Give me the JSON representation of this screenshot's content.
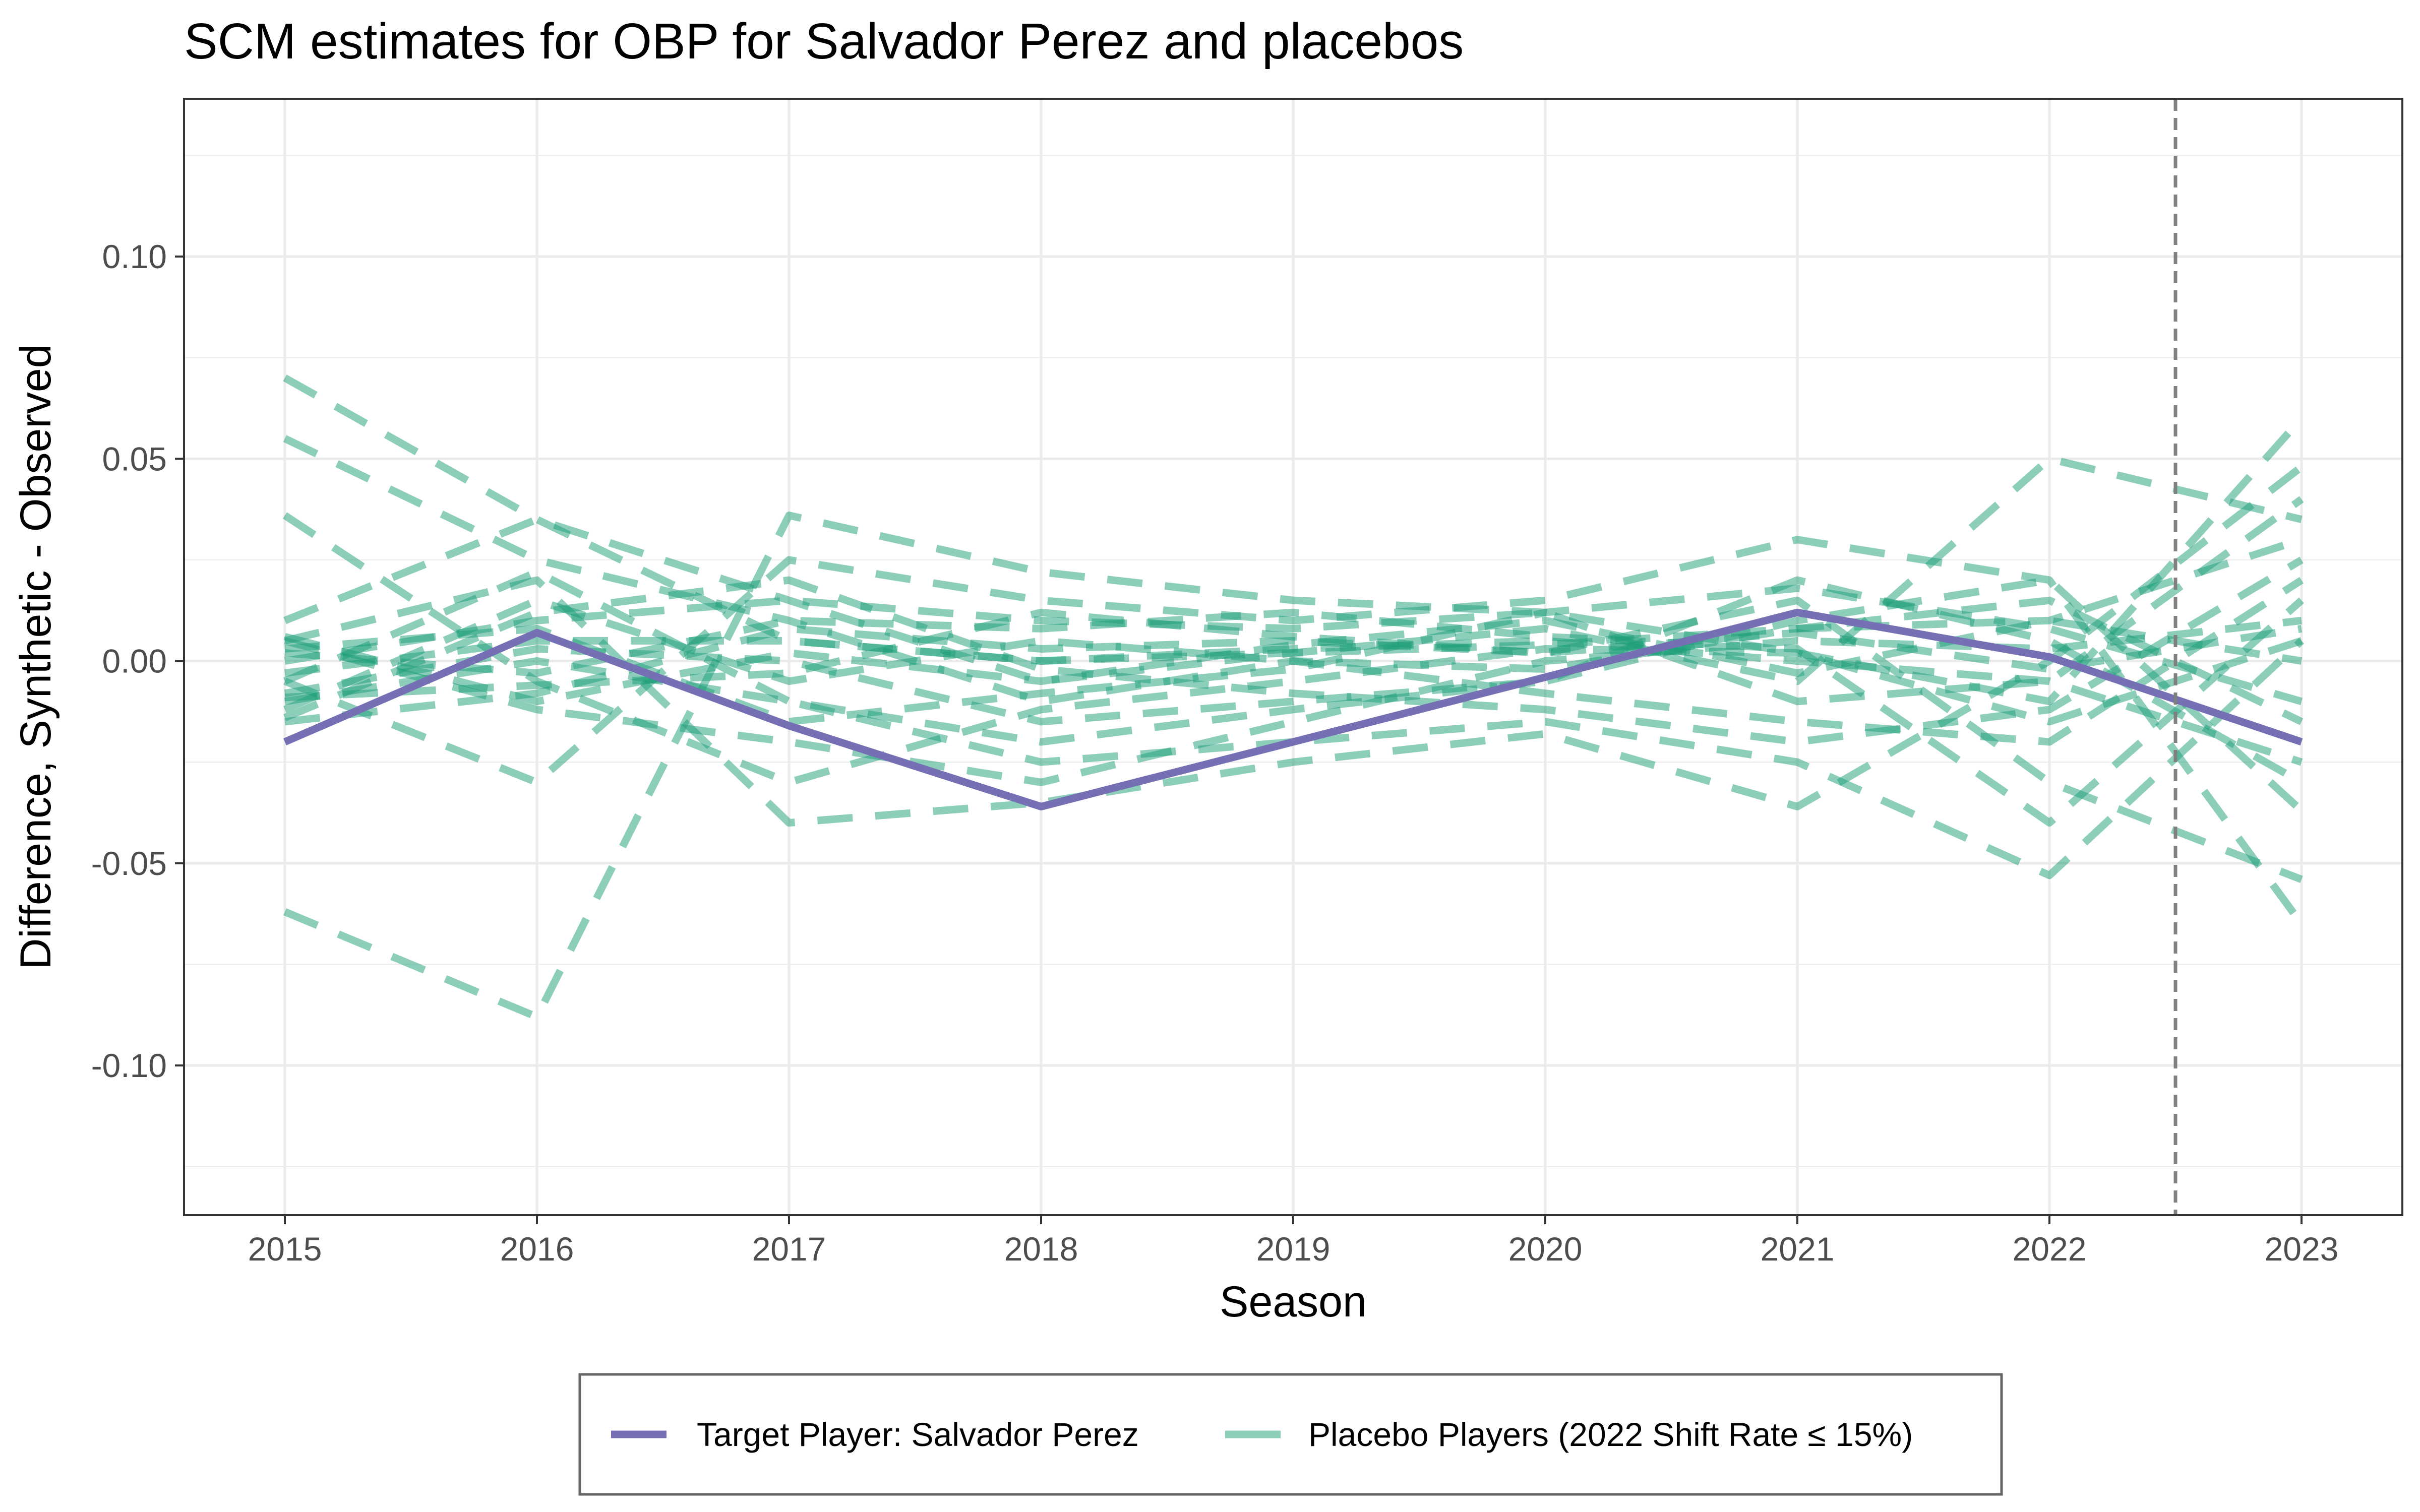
{
  "chart_data": {
    "type": "line",
    "title": "SCM estimates for OBP for Salvador Perez and placebos",
    "xlabel": "Season",
    "ylabel": "Difference, Synthetic - Observed",
    "x": [
      2015,
      2016,
      2017,
      2018,
      2019,
      2020,
      2021,
      2022,
      2023
    ],
    "xlim": [
      2014.6,
      2023.4
    ],
    "ylim": [
      -0.137,
      0.139
    ],
    "x_ticks": [
      "2015",
      "2016",
      "2017",
      "2018",
      "2019",
      "2020",
      "2021",
      "2022",
      "2023"
    ],
    "y_ticks": [
      {
        "value": 0.1,
        "label": "0.10"
      },
      {
        "value": 0.05,
        "label": "0.05"
      },
      {
        "value": 0.0,
        "label": "0.00"
      },
      {
        "value": -0.05,
        "label": "-0.05"
      },
      {
        "value": -0.1,
        "label": "-0.10"
      }
    ],
    "grid": true,
    "vline": {
      "x": 2022.5,
      "style": "dashed"
    },
    "legend_position": "bottom",
    "colors": {
      "target": "#7570b3",
      "placebo": "#1b9e77",
      "vline": "#7f7f7f"
    },
    "target": {
      "name": "Target Player: Salvador Perez",
      "values": [
        -0.02,
        0.007,
        -0.016,
        -0.036,
        -0.02,
        -0.004,
        0.012,
        0.001,
        -0.02
      ]
    },
    "placebo_name": "Placebo Players (2022 Shift Rate ≤ 15%)",
    "placebos": [
      [
        0.07,
        0.035,
        0.005,
        0.0,
        0.003,
        0.005,
        0.0,
        -0.005,
        -0.025
      ],
      [
        0.055,
        0.025,
        0.01,
        -0.01,
        0.0,
        -0.002,
        0.008,
        0.01,
        0.03
      ],
      [
        0.036,
        -0.005,
        -0.03,
        -0.012,
        -0.005,
        0.003,
        0.002,
        -0.015,
        0.005
      ],
      [
        -0.062,
        -0.088,
        0.036,
        0.022,
        0.015,
        0.012,
        0.002,
        -0.01,
        0.06
      ],
      [
        0.01,
        0.035,
        0.015,
        -0.005,
        0.002,
        0.008,
        -0.005,
        0.05,
        0.035
      ],
      [
        -0.005,
        -0.03,
        0.025,
        0.015,
        0.01,
        0.015,
        0.03,
        0.02,
        -0.065
      ],
      [
        0.005,
        0.02,
        -0.04,
        -0.035,
        -0.025,
        -0.018,
        -0.036,
        0.0,
        0.048
      ],
      [
        -0.01,
        0.0,
        -0.01,
        -0.025,
        -0.02,
        -0.015,
        -0.025,
        -0.053,
        0.005
      ],
      [
        -0.015,
        -0.008,
        0.008,
        0.003,
        0.005,
        0.002,
        0.015,
        -0.03,
        -0.054
      ],
      [
        0.0,
        0.01,
        0.015,
        0.01,
        0.008,
        0.012,
        -0.01,
        -0.005,
        0.04
      ],
      [
        -0.008,
        0.003,
        0.0,
        -0.015,
        -0.01,
        -0.005,
        0.01,
        0.02,
        -0.037
      ],
      [
        0.005,
        -0.012,
        -0.02,
        -0.03,
        -0.015,
        0.0,
        0.005,
        0.003,
        0.01
      ],
      [
        -0.003,
        0.005,
        0.005,
        0.0,
        0.002,
        0.004,
        0.008,
        0.015,
        -0.015
      ],
      [
        -0.012,
        0.015,
        -0.005,
        0.005,
        0.0,
        -0.008,
        -0.015,
        -0.02,
        0.02
      ],
      [
        0.002,
        -0.003,
        0.01,
        0.008,
        0.012,
        0.006,
        0.003,
        -0.04,
        0.015
      ],
      [
        -0.005,
        0.022,
        -0.01,
        -0.02,
        -0.012,
        -0.005,
        0.02,
        0.005,
        -0.03
      ],
      [
        0.006,
        -0.01,
        0.002,
        -0.005,
        0.004,
        0.01,
        -0.003,
        0.01,
        0.0
      ],
      [
        -0.009,
        -0.006,
        -0.003,
        0.012,
        0.006,
        0.002,
        0.007,
        -0.002,
        0.008
      ],
      [
        0.003,
        0.008,
        -0.015,
        -0.008,
        -0.002,
        0.012,
        0.018,
        0.008,
        -0.01
      ],
      [
        -0.014,
        0.012,
        0.02,
        -0.002,
        -0.008,
        -0.012,
        -0.02,
        -0.012,
        0.025
      ]
    ]
  }
}
